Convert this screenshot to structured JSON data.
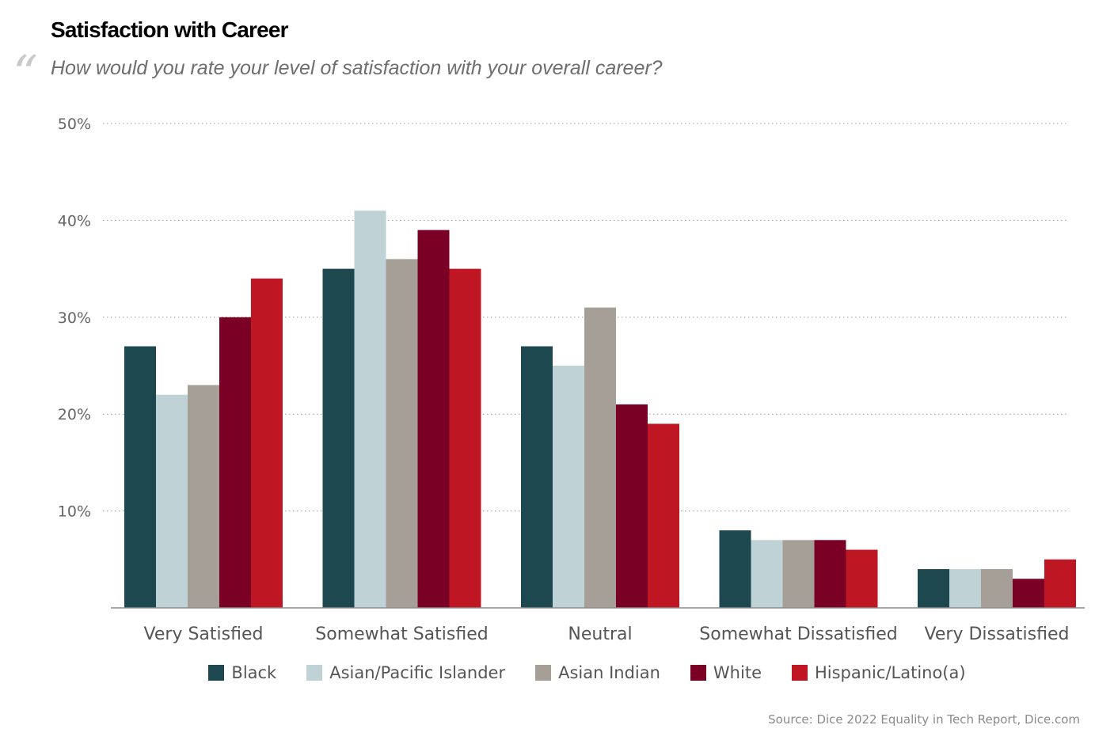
{
  "title": "Satisfaction with Career",
  "subtitle": "How would you rate your level of satisfaction with your overall career?",
  "quote_glyph": "“",
  "source": "Source: Dice 2022 Equality in Tech Report, Dice.com",
  "chart_data": {
    "type": "bar",
    "title": "Satisfaction with Career",
    "subtitle": "How would you rate your level of satisfaction with your overall career?",
    "categories": [
      "Very Satisfied",
      "Somewhat Satisfied",
      "Neutral",
      "Somewhat Dissatisfied",
      "Very Dissatisfied"
    ],
    "series": [
      {
        "name": "Black",
        "color": "#1e4850",
        "values": [
          27,
          35,
          27,
          8,
          4
        ]
      },
      {
        "name": "Asian/Pacific Islander",
        "color": "#bfd3d6",
        "values": [
          22,
          41,
          25,
          7,
          4
        ]
      },
      {
        "name": "Asian Indian",
        "color": "#a59f97",
        "values": [
          23,
          36,
          31,
          7,
          4
        ]
      },
      {
        "name": "White",
        "color": "#7a0026",
        "values": [
          30,
          39,
          21,
          7,
          3
        ]
      },
      {
        "name": "Hispanic/Latino(a)",
        "color": "#be1622",
        "values": [
          34,
          35,
          19,
          6,
          5
        ]
      }
    ],
    "ylim": [
      0,
      50
    ],
    "yticks": [
      10,
      20,
      30,
      40,
      50
    ],
    "ytick_labels": [
      "10%",
      "20%",
      "30%",
      "40%",
      "50%"
    ],
    "grid": true,
    "legend_position": "bottom",
    "xlabel": "",
    "ylabel": ""
  }
}
